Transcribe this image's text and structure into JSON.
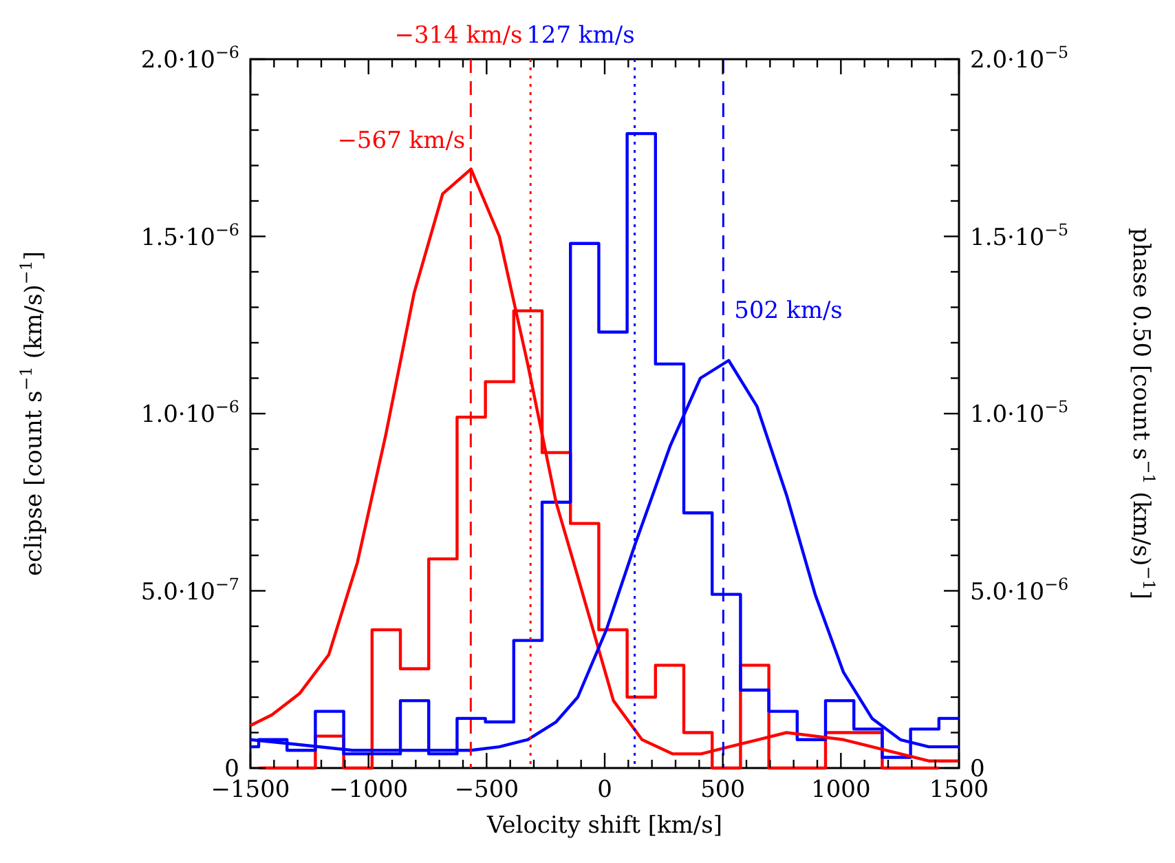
{
  "chart_data": {
    "type": "line",
    "xlabel": "Velocity shift [km/s]",
    "ylabel": "eclipse [count s$^{−1}$ (km/s)$^{−1}$]",
    "y2label": "phase 0.50 [count s$^{−1}$ (km/s)$^{−1}$]",
    "xlim": [
      -1500,
      1500
    ],
    "xticks": [
      {
        "value": -1500,
        "label": "−1500"
      },
      {
        "value": -1400,
        "label": null
      },
      {
        "value": -1300,
        "label": null
      },
      {
        "value": -1200,
        "label": null
      },
      {
        "value": -1100,
        "label": null
      },
      {
        "value": -1000,
        "label": "−1000"
      },
      {
        "value": -900,
        "label": null
      },
      {
        "value": -800,
        "label": null
      },
      {
        "value": -700,
        "label": null
      },
      {
        "value": -600,
        "label": null
      },
      {
        "value": -500,
        "label": "−500"
      },
      {
        "value": -400,
        "label": null
      },
      {
        "value": -300,
        "label": null
      },
      {
        "value": -200,
        "label": null
      },
      {
        "value": -100,
        "label": null
      },
      0,
      {
        "value": 100,
        "label": null
      },
      {
        "value": 200,
        "label": null
      },
      {
        "value": 300,
        "label": null
      },
      {
        "value": 400,
        "label": null
      },
      500,
      {
        "value": 600,
        "label": null
      },
      {
        "value": 700,
        "label": null
      },
      {
        "value": 800,
        "label": null
      },
      {
        "value": 900,
        "label": null
      },
      1000,
      {
        "value": 1100,
        "label": null
      },
      {
        "value": 1200,
        "label": null
      },
      {
        "value": 1300,
        "label": null
      },
      {
        "value": 1400,
        "label": null
      },
      1500
    ],
    "ylim": [
      0,
      2e-06
    ],
    "yticks": [
      0,
      {
        "value": 1e-07,
        "label": null
      },
      {
        "value": 2e-07,
        "label": null
      },
      {
        "value": 3e-07,
        "label": null
      },
      {
        "value": 4e-07,
        "label": null
      },
      {
        "value": 5e-07,
        "label": "5.0·10$^{−7}$"
      },
      {
        "value": 6e-07,
        "label": null
      },
      {
        "value": 7e-07,
        "label": null
      },
      {
        "value": 8e-07,
        "label": null
      },
      {
        "value": 9e-07,
        "label": null
      },
      {
        "value": 1e-06,
        "label": "1.0·10$^{−6}$"
      },
      {
        "value": 1.1e-06,
        "label": null
      },
      {
        "value": 1.2e-06,
        "label": null
      },
      {
        "value": 1.3e-06,
        "label": null
      },
      {
        "value": 1.4e-06,
        "label": null
      },
      {
        "value": 1.5e-06,
        "label": "1.5·10$^{−6}$"
      },
      {
        "value": 1.6e-06,
        "label": null
      },
      {
        "value": 1.7e-06,
        "label": null
      },
      {
        "value": 1.8e-06,
        "label": null
      },
      {
        "value": 1.9e-06,
        "label": null
      },
      {
        "value": 2e-06,
        "label": "2.0·10$^{−6}$"
      }
    ],
    "y2lim": [
      0,
      2e-05
    ],
    "y2ticks": [
      0,
      {
        "value": 1e-06,
        "label": null
      },
      {
        "value": 2e-06,
        "label": null
      },
      {
        "value": 3e-06,
        "label": null
      },
      {
        "value": 4e-06,
        "label": null
      },
      {
        "value": 5e-06,
        "label": "5.0·10$^{−6}$"
      },
      {
        "value": 6e-06,
        "label": null
      },
      {
        "value": 7e-06,
        "label": null
      },
      {
        "value": 8e-06,
        "label": null
      },
      {
        "value": 9e-06,
        "label": null
      },
      {
        "value": 1e-05,
        "label": "1.0·10$^{−5}$"
      },
      {
        "value": 1.1e-05,
        "label": null
      },
      {
        "value": 1.2e-05,
        "label": null
      },
      {
        "value": 1.3e-05,
        "label": null
      },
      {
        "value": 1.4e-05,
        "label": null
      },
      {
        "value": 1.5e-05,
        "label": "1.5·10$^{−5}$"
      },
      {
        "value": 1.6e-05,
        "label": null
      },
      {
        "value": 1.7e-05,
        "label": null
      },
      {
        "value": 1.8e-05,
        "label": null
      },
      {
        "value": 1.9e-05,
        "label": null
      },
      {
        "value": 2e-05,
        "label": "2.0·10$^{−5}$"
      }
    ],
    "series": [
      {
        "type": "step",
        "color": "#ff0000",
        "x": [
          -1465,
          -1345,
          -1225,
          -1105,
          -985,
          -865,
          -745,
          -625,
          -505,
          -385,
          -265,
          -145,
          -25,
          95,
          215,
          335,
          455,
          575,
          695,
          815,
          935,
          1055,
          1175,
          1295,
          1415
        ],
        "values": [
          0,
          0,
          9e-08,
          0,
          3.9e-07,
          2.8e-07,
          5.9e-07,
          9.9e-07,
          1.09e-06,
          1.29e-06,
          8.9e-07,
          6.9e-07,
          3.9e-07,
          2e-07,
          2.9e-07,
          1e-07,
          0,
          2.9e-07,
          0,
          0,
          1e-07,
          1e-07,
          0,
          0,
          0
        ]
      },
      {
        "type": "step",
        "axis": "y2",
        "color": "#0000ff",
        "x": [
          -1500,
          -1465,
          -1345,
          -1225,
          -1105,
          -985,
          -865,
          -745,
          -625,
          -505,
          -385,
          -265,
          -145,
          -25,
          95,
          215,
          335,
          455,
          575,
          695,
          815,
          935,
          1055,
          1175,
          1295,
          1415,
          1500
        ],
        "values": [
          6e-07,
          8e-07,
          5e-07,
          1.6e-06,
          4e-07,
          4e-07,
          1.9e-06,
          4e-07,
          1.4e-06,
          1.3e-06,
          3.6e-06,
          7.5e-06,
          1.48e-05,
          1.23e-05,
          1.79e-05,
          1.14e-05,
          7.2e-06,
          4.9e-06,
          2.2e-06,
          1.6e-06,
          8e-07,
          1.9e-06,
          1.1e-06,
          3e-07,
          1.1e-06,
          1.4e-06,
          1.4e-06
        ]
      },
      {
        "color": "#ff0000",
        "x": [
          -1500,
          -1409,
          -1292,
          -1168,
          -1047,
          -927,
          -807,
          -686,
          -566,
          -446,
          -326,
          -206,
          -114,
          37,
          158,
          288,
          409,
          527,
          649,
          770,
          891,
          1011,
          1132,
          1252,
          1372,
          1500
        ],
        "values": [
          1.2e-07,
          1.5e-07,
          2.1e-07,
          3.2e-07,
          5.8e-07,
          9.4e-07,
          1.34e-06,
          1.62e-06,
          1.69e-06,
          1.5e-06,
          1.14e-06,
          7.5e-07,
          5.4e-07,
          1.9e-07,
          8e-08,
          4e-08,
          4e-08,
          6e-08,
          8e-08,
          1e-07,
          9e-08,
          8e-08,
          6e-08,
          4e-08,
          2e-08,
          2e-08
        ]
      },
      {
        "axis": "y2",
        "color": "#0000ff",
        "x": [
          -1500,
          -1350,
          -1069,
          -768,
          -566,
          -446,
          -326,
          -206,
          -114,
          7,
          128,
          278,
          405,
          525,
          645,
          770,
          891,
          1011,
          1132,
          1252,
          1372,
          1500
        ],
        "values": [
          8e-07,
          7e-07,
          5e-07,
          5e-07,
          5e-07,
          6e-07,
          8e-07,
          1.3e-06,
          2e-06,
          3.9e-06,
          6.3e-06,
          9.1e-06,
          1.1e-05,
          1.15e-05,
          1.02e-05,
          7.7e-06,
          4.9e-06,
          2.7e-06,
          1.4e-06,
          8e-07,
          6e-07,
          6e-07
        ]
      }
    ],
    "ref_lines": [
      {
        "axis": "x",
        "value": -567,
        "color": "#ff0000",
        "line_style": "dashed"
      },
      {
        "axis": "x",
        "value": -314,
        "label": "−314 km/s",
        "color": "#ff0000",
        "line_style": "dotted"
      },
      {
        "axis": "x",
        "value": 127,
        "label": "127 km/s",
        "color": "#0000ff",
        "line_style": "dotted"
      },
      {
        "axis": "x",
        "value": 502,
        "color": "#0000ff",
        "line_style": "dashed"
      }
    ],
    "annotations": [
      {
        "text": "−567 km/s",
        "x": -567,
        "y": 1.75e-06
      },
      {
        "text": "502 km/s",
        "x": 502,
        "y": 1.27e-06
      }
    ],
    "grid": false
  }
}
